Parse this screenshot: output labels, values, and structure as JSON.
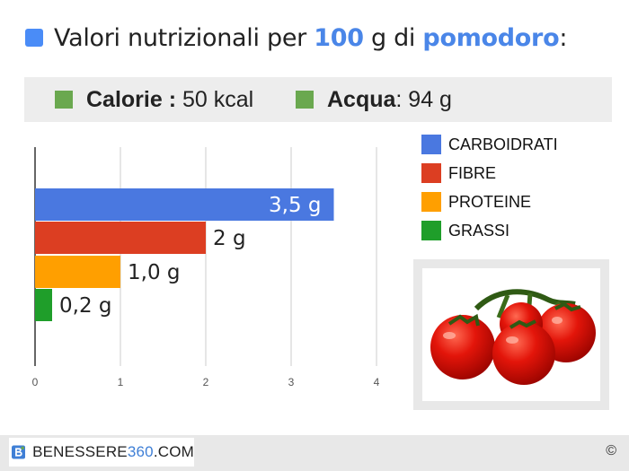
{
  "header": {
    "title_prefix": "Valori nutrizionali per ",
    "quantity": "100",
    "unit": " g di ",
    "food": "pomodoro",
    "suffix": ":"
  },
  "stats": {
    "calorie_label": "Calorie :",
    "calorie_value": " 50 kcal",
    "acqua_label": "Acqua",
    "acqua_value": ": 94 g"
  },
  "chart_data": {
    "type": "bar",
    "orientation": "horizontal",
    "categories": [
      "CARBOIDRATI",
      "FIBRE",
      "PROTEINE",
      "GRASSI"
    ],
    "values": [
      3.5,
      2,
      1.0,
      0.2
    ],
    "data_labels": [
      "3,5 g",
      "2 g",
      "1,0 g",
      "0,2 g"
    ],
    "colors": [
      "#4a78e0",
      "#dc3e22",
      "#ff9f00",
      "#1f9e2a"
    ],
    "xlim": [
      0,
      4
    ],
    "xticks": [
      "0",
      "1",
      "2",
      "3",
      "4"
    ],
    "grid": true,
    "legend_placement": "right"
  },
  "legend": {
    "items": [
      {
        "label": "CARBOIDRATI",
        "color": "#4a78e0"
      },
      {
        "label": "FIBRE",
        "color": "#dc3e22"
      },
      {
        "label": "PROTEINE",
        "color": "#ff9f00"
      },
      {
        "label": "GRASSI",
        "color": "#1f9e2a"
      }
    ]
  },
  "footer": {
    "brand_prefix": "BENESSERE",
    "brand_number": "360",
    "brand_suffix": ".COM",
    "copyright": "©"
  },
  "colors": {
    "accent_blue": "#4a86e8",
    "stat_square": "#6aa84f"
  }
}
